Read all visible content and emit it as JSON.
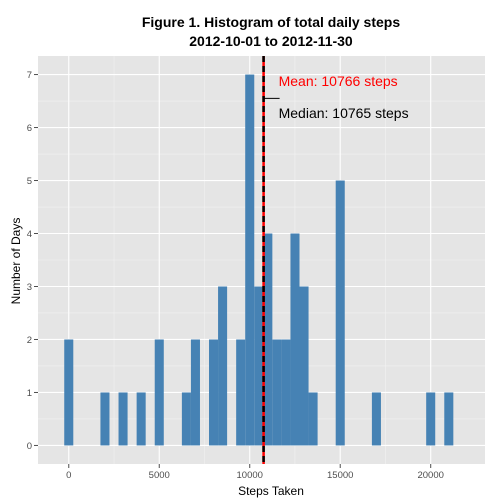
{
  "chart_data": {
    "type": "bar",
    "title_line1": "Figure 1. Histogram of total daily steps",
    "title_line2": "2012-10-01 to 2012-11-30",
    "xlabel": "Steps Taken",
    "ylabel": "Number of Days",
    "xlim": [
      -1700,
      23000
    ],
    "ylim": [
      -0.35,
      7.35
    ],
    "x_ticks": [
      0,
      5000,
      10000,
      15000,
      20000
    ],
    "y_ticks": [
      0,
      1,
      2,
      3,
      4,
      5,
      6,
      7
    ],
    "bin_width": 500,
    "bars": [
      {
        "x": 0,
        "count": 2
      },
      {
        "x": 2000,
        "count": 1
      },
      {
        "x": 3000,
        "count": 1
      },
      {
        "x": 4000,
        "count": 1
      },
      {
        "x": 5000,
        "count": 2
      },
      {
        "x": 6500,
        "count": 1
      },
      {
        "x": 7000,
        "count": 2
      },
      {
        "x": 8000,
        "count": 2
      },
      {
        "x": 8500,
        "count": 3
      },
      {
        "x": 9500,
        "count": 2
      },
      {
        "x": 10000,
        "count": 7
      },
      {
        "x": 10500,
        "count": 3
      },
      {
        "x": 11000,
        "count": 4
      },
      {
        "x": 11500,
        "count": 2
      },
      {
        "x": 12000,
        "count": 2
      },
      {
        "x": 12500,
        "count": 4
      },
      {
        "x": 13000,
        "count": 3
      },
      {
        "x": 13500,
        "count": 1
      },
      {
        "x": 15000,
        "count": 5
      },
      {
        "x": 17000,
        "count": 1
      },
      {
        "x": 20000,
        "count": 1
      },
      {
        "x": 21000,
        "count": 1
      }
    ],
    "mean": 10766,
    "median": 10765,
    "mean_label": "Mean: 10766  steps",
    "median_label": "Median: 10765  steps",
    "colors": {
      "bar": "#4682b4",
      "panel": "#e5e5e5",
      "grid_major": "#ffffff",
      "grid_minor": "#f2f2f2",
      "mean": "#ff0000",
      "median": "#000000"
    },
    "grid": true
  }
}
